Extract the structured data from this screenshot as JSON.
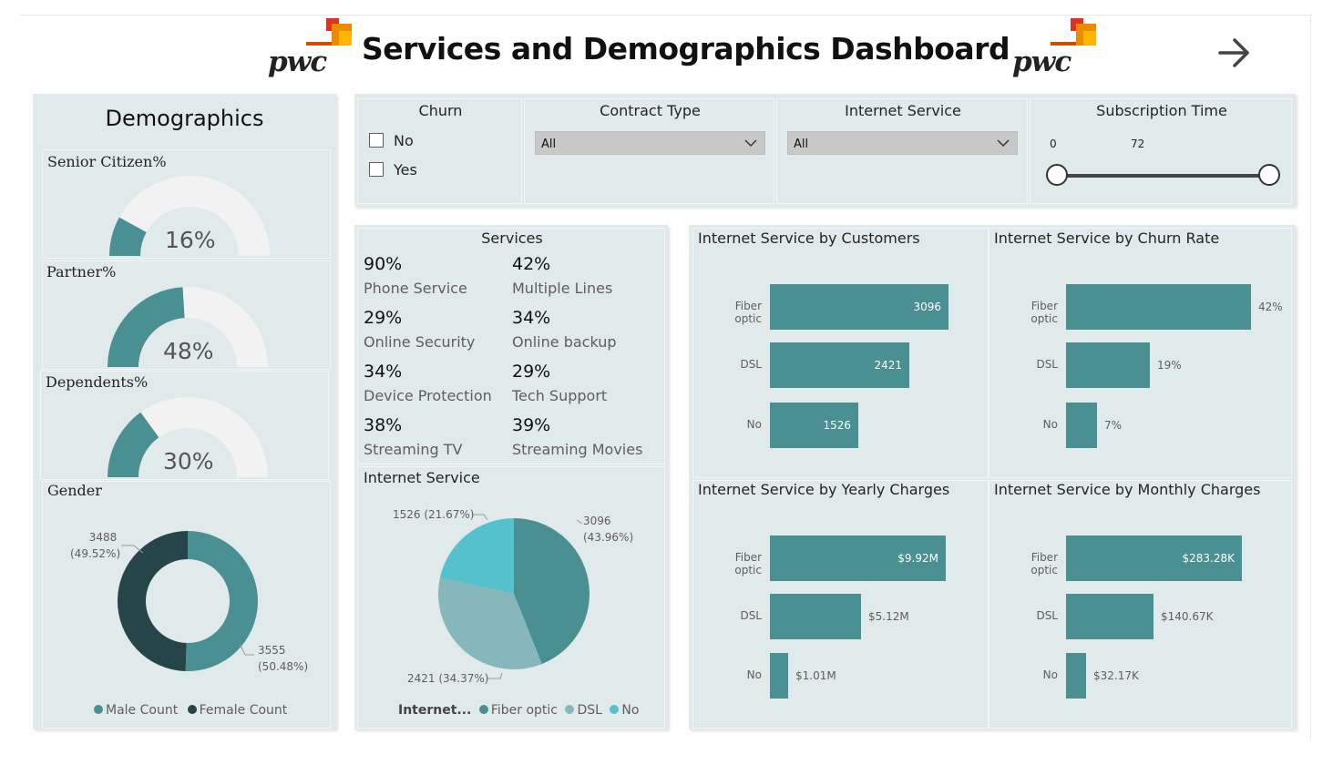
{
  "header": {
    "title": "Services and Demographics Dashboard",
    "logo_text": "pwc",
    "next_icon": "arrow-right-icon"
  },
  "demographics": {
    "title": "Demographics",
    "senior": {
      "label": "Senior Citizen%",
      "value_text": "16%",
      "value": 0.16
    },
    "partner": {
      "label": "Partner%",
      "value_text": "48%",
      "value": 0.48
    },
    "dependents": {
      "label": "Dependents%",
      "value_text": "30%",
      "value": 0.3
    },
    "gender": {
      "label": "Gender",
      "female_label_1": "3488",
      "female_label_2": "(49.52%)",
      "male_label_1": "3555",
      "male_label_2": "(50.48%)",
      "legend_male": "Male Count",
      "legend_female": "Female Count",
      "female_value": 3488,
      "male_value": 3555
    }
  },
  "filters": {
    "churn": {
      "title": "Churn",
      "options": [
        "No",
        "Yes"
      ]
    },
    "contract": {
      "title": "Contract Type",
      "selected": "All"
    },
    "internet": {
      "title": "Internet Service",
      "selected": "All"
    },
    "subscription": {
      "title": "Subscription Time",
      "min": "0",
      "max": "72"
    }
  },
  "services": {
    "title": "Services",
    "items": [
      {
        "pct": "90%",
        "label": "Phone Service"
      },
      {
        "pct": "42%",
        "label": "Multiple Lines"
      },
      {
        "pct": "29%",
        "label": "Online Security"
      },
      {
        "pct": "34%",
        "label": "Online backup"
      },
      {
        "pct": "34%",
        "label": "Device Protection"
      },
      {
        "pct": "29%",
        "label": "Tech Support"
      },
      {
        "pct": "38%",
        "label": "Streaming TV"
      },
      {
        "pct": "39%",
        "label": "Streaming Movies"
      }
    ]
  },
  "internet_pie": {
    "title": "Internet Service",
    "label_fiber_1": "3096",
    "label_fiber_2": "(43.96%)",
    "label_dsl": "2421 (34.37%)",
    "label_no": "1526 (21.67%)",
    "legend_title": "Internet...",
    "legend_items": [
      "Fiber optic",
      "DSL",
      "No"
    ]
  },
  "colors": {
    "teal": "#4a8f91",
    "dark_teal": "#254548",
    "light_teal": "#86b8bb",
    "cyan": "#55c1cc",
    "gauge_bg": "#f2f2f2",
    "panel_bg": "#e1eaea"
  },
  "chart_data": [
    {
      "type": "bar",
      "title": "Internet Service by Customers",
      "categories": [
        "Fiber optic",
        "DSL",
        "No"
      ],
      "values": [
        3096,
        2421,
        1526
      ],
      "value_labels": [
        "3096",
        "2421",
        "1526"
      ],
      "xlim": [
        0,
        3300
      ]
    },
    {
      "type": "bar",
      "title": "Internet Service by Churn Rate",
      "categories": [
        "Fiber optic",
        "DSL",
        "No"
      ],
      "values": [
        42,
        19,
        7
      ],
      "value_labels": [
        "42%",
        "19%",
        "7%"
      ],
      "xlim": [
        0,
        45
      ]
    },
    {
      "type": "bar",
      "title": "Internet Service by Yearly Charges",
      "categories": [
        "Fiber optic",
        "DSL",
        "No"
      ],
      "values": [
        9.92,
        5.12,
        1.01
      ],
      "value_labels": [
        "$9.92M",
        "$5.12M",
        "$1.01M"
      ],
      "xlim": [
        0,
        10.5
      ]
    },
    {
      "type": "bar",
      "title": "Internet Service by Monthly Charges",
      "categories": [
        "Fiber optic",
        "DSL",
        "No"
      ],
      "values": [
        283.28,
        140.67,
        32.17
      ],
      "value_labels": [
        "$283.28K",
        "$140.67K",
        "$32.17K"
      ],
      "xlim": [
        0,
        300
      ]
    },
    {
      "type": "pie",
      "title": "Internet Service",
      "categories": [
        "Fiber optic",
        "DSL",
        "No"
      ],
      "values": [
        3096,
        2421,
        1526
      ]
    },
    {
      "type": "pie",
      "title": "Gender",
      "categories": [
        "Male Count",
        "Female Count"
      ],
      "values": [
        3555,
        3488
      ]
    }
  ]
}
